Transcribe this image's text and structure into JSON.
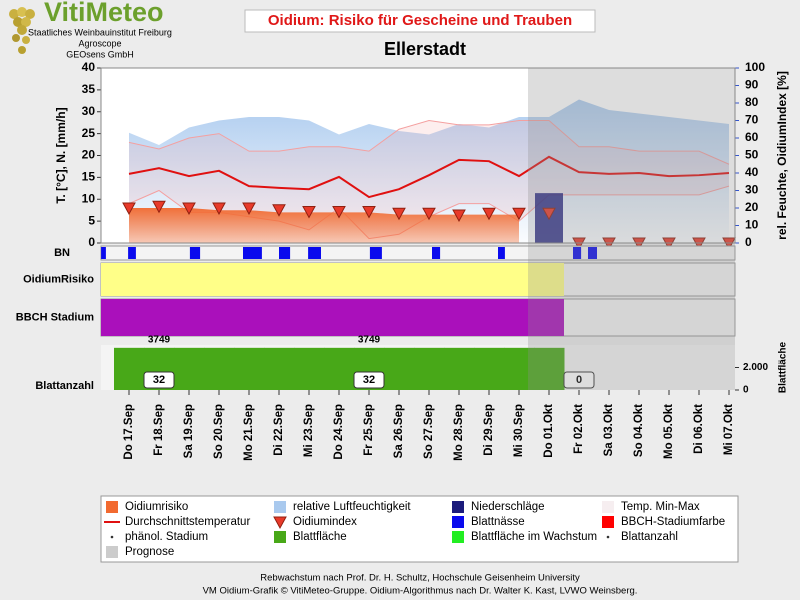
{
  "header": {
    "logo": "VitiMeteo",
    "logo_lines": [
      "Staatliches Weinbauinstitut Freiburg",
      "Agroscope",
      "GEOsens GmbH"
    ]
  },
  "footer": [
    "Rebwachstum nach Prof. Dr. H. Schultz, Hochschule Geisenheim University",
    "VM Oidium-Grafik © VitiMeteo-Gruppe. Oidium-Algorithmus nach Dr. Walter K. Kast, LVWO Weinsberg."
  ],
  "chart_data": {
    "type": "combo",
    "title": "Oidium: Risiko für Gescheine und Trauben",
    "subtitle": "Ellerstadt",
    "categories": [
      "Do 17.Sep",
      "Fr 18.Sep",
      "Sa 19.Sep",
      "So 20.Sep",
      "Mo 21.Sep",
      "Di 22.Sep",
      "Mi 23.Sep",
      "Do 24.Sep",
      "Fr 25.Sep",
      "Sa 26.Sep",
      "So 27.Sep",
      "Mo 28.Sep",
      "Di 29.Sep",
      "Mi 30.Sep",
      "Do 01.Okt",
      "Fr 02.Okt",
      "Sa 03.Okt",
      "So 04.Okt",
      "Mo 05.Okt",
      "Di 06.Okt",
      "Mi 07.Okt"
    ],
    "ylabel": "T. [°C], N. [mm/h]",
    "y2label": "rel. Feuchte, OidiumIndex [%]",
    "ylim": [
      0,
      40
    ],
    "yticks": [
      0,
      5,
      10,
      15,
      20,
      25,
      30,
      35,
      40
    ],
    "y2lim": [
      0,
      100
    ],
    "y2ticks": [
      0,
      10,
      20,
      30,
      40,
      50,
      60,
      70,
      80,
      90,
      100
    ],
    "forecast_from": "Do 01.Okt",
    "series": [
      {
        "type": "area",
        "axis": "y2",
        "color": "#a9c9ee",
        "values": [
          63,
          56,
          66,
          70,
          72,
          72,
          70,
          62,
          68,
          64,
          62,
          68,
          66,
          72,
          72,
          82,
          76,
          74,
          72,
          70,
          68
        ]
      },
      {
        "type": "range",
        "color": "#f4a0a0",
        "low": [
          9,
          12,
          7,
          7,
          6,
          5,
          3,
          8,
          1,
          2,
          6,
          9,
          9,
          5,
          11,
          11,
          11,
          11,
          11,
          11,
          13
        ],
        "high": [
          23,
          21.5,
          24,
          25,
          21,
          21,
          22,
          22,
          21,
          26,
          28,
          27,
          27,
          28,
          28,
          22,
          22,
          21,
          21,
          21,
          18
        ]
      },
      {
        "type": "area",
        "color": "#f26a30",
        "values": [
          8,
          8,
          8,
          7.5,
          7.5,
          7,
          7,
          7,
          7,
          6.5,
          6.5,
          6.5,
          6.5,
          6.5,
          null,
          null,
          null,
          null,
          null,
          null,
          null
        ]
      },
      {
        "type": "bar",
        "color": "#1c1c7c",
        "values": [
          0,
          0,
          0,
          0,
          0,
          0,
          0,
          0,
          0,
          0,
          0,
          0,
          0,
          0,
          11.4,
          0,
          0,
          0,
          0,
          0,
          0
        ]
      },
      {
        "type": "line",
        "color": "#e01010",
        "values": [
          15.8,
          17.1,
          15.3,
          16.5,
          13,
          12.6,
          12.3,
          15.1,
          10.5,
          12.3,
          15.5,
          19,
          18.7,
          15.3,
          19.7,
          16.2,
          15.8,
          16,
          15.3,
          15.5,
          16
        ]
      },
      {
        "type": "triangle",
        "axis": "y2",
        "color": "#e83a2a",
        "values": [
          20,
          21,
          20,
          20,
          20,
          19,
          18,
          18,
          18,
          17,
          17,
          16,
          17,
          17,
          17,
          0,
          0,
          0,
          0,
          0,
          0
        ]
      }
    ],
    "strips": [
      {
        "label": "BN",
        "type": "wetness",
        "color": "#0a0aee",
        "intervals": [
          [
            -0.93,
            -0.77
          ],
          [
            -0.03,
            0.23
          ],
          [
            2.03,
            2.37
          ],
          [
            3.8,
            4.43
          ],
          [
            5,
            5.37
          ],
          [
            5.97,
            6.4
          ],
          [
            8.03,
            8.43
          ],
          [
            10.1,
            10.37
          ],
          [
            12.3,
            12.53
          ],
          [
            14.8,
            15.07
          ],
          [
            15.3,
            15.6
          ]
        ]
      },
      {
        "label": "OidiumRisiko",
        "type": "band",
        "color": "#ffff88",
        "until": "Do 01.Okt"
      },
      {
        "label": "BBCH Stadium",
        "type": "band",
        "color": "#aa10bb",
        "until": "Do 01.Okt"
      },
      {
        "label": "Blattanzahl",
        "type": "leaf",
        "color": "#48a818",
        "ylabel": "Blattfläche",
        "values": [
          3749,
          3749,
          3749,
          3749,
          3749,
          3749,
          3749,
          3749,
          3749,
          3749,
          3749,
          3749,
          3749,
          3749,
          3749,
          null,
          null,
          null,
          null,
          null,
          null
        ],
        "ylim": [
          0,
          4000
        ],
        "yticks": [
          0,
          {
            "value": 2000,
            "label": "2.000"
          }
        ],
        "area_labels": [
          {
            "category": "Fr 18.Sep",
            "value": 3749
          },
          {
            "category": "Fr 25.Sep",
            "value": 3749
          }
        ],
        "count_labels": [
          {
            "category": "Fr 18.Sep",
            "value": 32
          },
          {
            "category": "Fr 25.Sep",
            "value": 32
          },
          {
            "category": "Fr 02.Okt",
            "value": 0
          }
        ]
      }
    ],
    "legend": [
      {
        "name": "Oidiumrisiko",
        "color": "#f26a30",
        "symbol": "square"
      },
      {
        "name": "relative Luftfeuchtigkeit",
        "color": "#a9c9ee",
        "symbol": "square"
      },
      {
        "name": "Niederschläge",
        "color": "#1c1c7c",
        "symbol": "square"
      },
      {
        "name": "Temp. Min-Max",
        "color": "#f6eef0",
        "symbol": "square"
      },
      {
        "name": "Durchschnittstemperatur",
        "color": "#e01010",
        "symbol": "line"
      },
      {
        "name": "Oidiumindex",
        "color": "#e83a2a",
        "symbol": "triangle"
      },
      {
        "name": "Blattnässe",
        "color": "#0a0aee",
        "symbol": "square"
      },
      {
        "name": "BBCH-Stadiumfarbe",
        "color": "#ff0000",
        "symbol": "square"
      },
      {
        "name": "phänol. Stadium",
        "color": "#333333",
        "symbol": "dot"
      },
      {
        "name": "Blattfläche",
        "color": "#48a818",
        "symbol": "square"
      },
      {
        "name": "Blattfläche im Wachstum",
        "color": "#22ee22",
        "symbol": "square"
      },
      {
        "name": "Blattanzahl",
        "color": "#333333",
        "symbol": "dot"
      },
      {
        "name": "Prognose",
        "color": "#cccccc",
        "symbol": "square"
      }
    ]
  }
}
